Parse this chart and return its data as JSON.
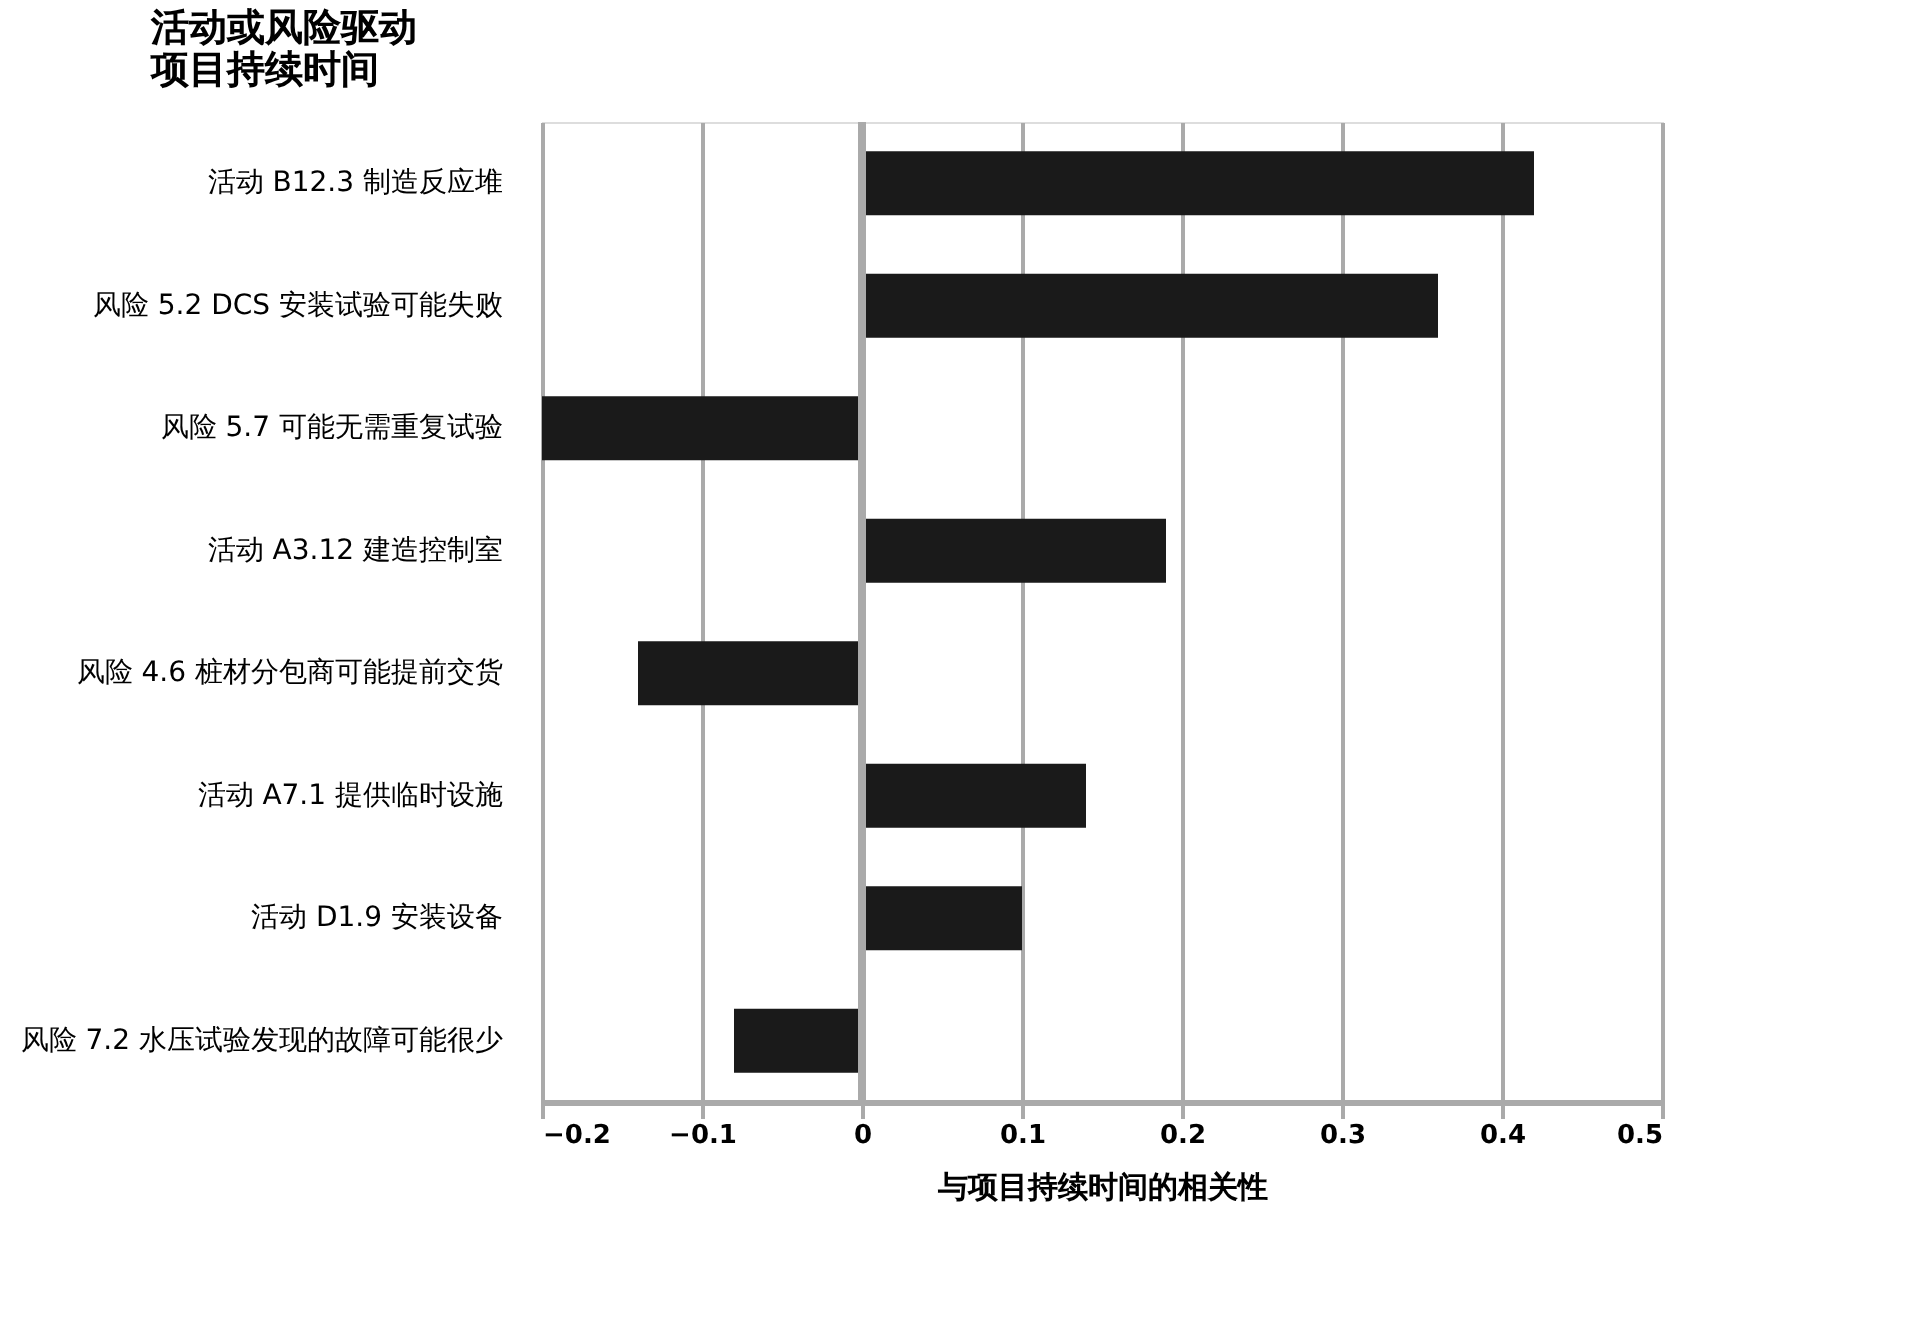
{
  "chart_data": {
    "type": "bar",
    "orientation": "horizontal",
    "title": "活动或风险驱动项目持续时间",
    "xlabel": "与项目持续时间的相关性",
    "categories": [
      "活动 B12.3  制造反应堆",
      "风险 5.2  DCS 安装试验可能失败",
      "风险 5.7  可能无需重复试验",
      "活动 A3.12  建造控制室",
      "风险 4.6  桩材分包商可能提前交货",
      "活动 A7.1  提供临时设施",
      "活动 D1.9  安装设备",
      "风险 7.2  水压试验发现的故障可能很少"
    ],
    "values": [
      0.42,
      0.36,
      -0.2,
      0.19,
      -0.14,
      0.14,
      0.1,
      -0.08
    ],
    "color": "#1a1a1a",
    "xlim": [
      -0.2,
      0.5
    ],
    "xticks": [
      -0.2,
      -0.1,
      0,
      0.1,
      0.2,
      0.3,
      0.4,
      0.5
    ],
    "grid": "x"
  }
}
